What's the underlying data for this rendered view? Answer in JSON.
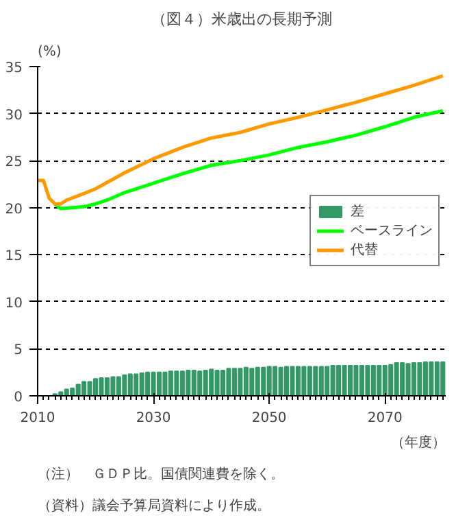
{
  "chart_data": {
    "type": "bar",
    "title": "（図４）米歳出の長期予測",
    "ylabel": "(%)",
    "xlabel": "（年度）",
    "annotations": [
      "（注）　ＧＤＰ比。国債関連費を除く。",
      "（資料）議会予算局資料により作成。"
    ],
    "series": [
      {
        "name": "差",
        "color": "#339966",
        "x": [
          2013,
          2014,
          2015,
          2016,
          2017,
          2018,
          2019,
          2020,
          2021,
          2022,
          2023,
          2024,
          2025,
          2026,
          2027,
          2028,
          2029,
          2030,
          2031,
          2032,
          2033,
          2034,
          2035,
          2036,
          2037,
          2038,
          2039,
          2040,
          2041,
          2042,
          2043,
          2044,
          2045,
          2046,
          2047,
          2048,
          2049,
          2050,
          2051,
          2052,
          2053,
          2054,
          2055,
          2056,
          2057,
          2058,
          2059,
          2060,
          2061,
          2062,
          2063,
          2064,
          2065,
          2066,
          2067,
          2068,
          2069,
          2070,
          2071,
          2072,
          2073,
          2074,
          2075,
          2076,
          2077,
          2078,
          2079,
          2080
        ],
        "values": [
          0.2,
          0.4,
          0.7,
          0.8,
          1.2,
          1.5,
          1.5,
          1.8,
          1.9,
          1.9,
          2.0,
          2.0,
          2.2,
          2.3,
          2.3,
          2.4,
          2.5,
          2.5,
          2.5,
          2.5,
          2.6,
          2.6,
          2.6,
          2.7,
          2.7,
          2.6,
          2.7,
          2.8,
          2.7,
          2.7,
          2.9,
          2.9,
          2.9,
          3.0,
          2.9,
          3.0,
          3.0,
          3.1,
          3.1,
          3.0,
          3.1,
          3.1,
          3.1,
          3.1,
          3.1,
          3.1,
          3.1,
          3.1,
          3.2,
          3.2,
          3.2,
          3.2,
          3.2,
          3.2,
          3.2,
          3.2,
          3.2,
          3.2,
          3.3,
          3.5,
          3.5,
          3.4,
          3.5,
          3.5,
          3.6,
          3.6,
          3.6,
          3.6
        ]
      },
      {
        "name": "ベースライン",
        "type": "line",
        "color": "#00ff00",
        "x": [
          2013,
          2014,
          2016,
          2018,
          2020,
          2022,
          2025,
          2030,
          2035,
          2040,
          2045,
          2050,
          2055,
          2060,
          2065,
          2070,
          2075,
          2080
        ],
        "values": [
          20.4,
          19.9,
          20.0,
          20.1,
          20.4,
          20.8,
          21.6,
          22.6,
          23.6,
          24.5,
          25.0,
          25.6,
          26.4,
          27.0,
          27.7,
          28.6,
          29.6,
          30.3
        ]
      },
      {
        "name": "代替",
        "type": "line",
        "color": "#ff9900",
        "x": [
          2010,
          2011,
          2012,
          2013,
          2014,
          2015,
          2018,
          2020,
          2025,
          2030,
          2035,
          2040,
          2045,
          2050,
          2055,
          2060,
          2065,
          2070,
          2075,
          2080
        ],
        "values": [
          22.9,
          22.9,
          21.0,
          20.4,
          20.4,
          20.8,
          21.5,
          22.0,
          23.7,
          25.2,
          26.4,
          27.4,
          28.0,
          28.9,
          29.6,
          30.4,
          31.2,
          32.1,
          33.0,
          34.0
        ]
      }
    ],
    "xlim": [
      2010,
      2080.5
    ],
    "xticks": [
      2010,
      2030,
      2050,
      2070
    ],
    "ylim": [
      0,
      35
    ],
    "yticks": [
      0,
      5,
      10,
      15,
      20,
      25,
      30,
      35
    ],
    "grid": "y",
    "legend": "right",
    "marker": "none",
    "line_style": "solid"
  }
}
